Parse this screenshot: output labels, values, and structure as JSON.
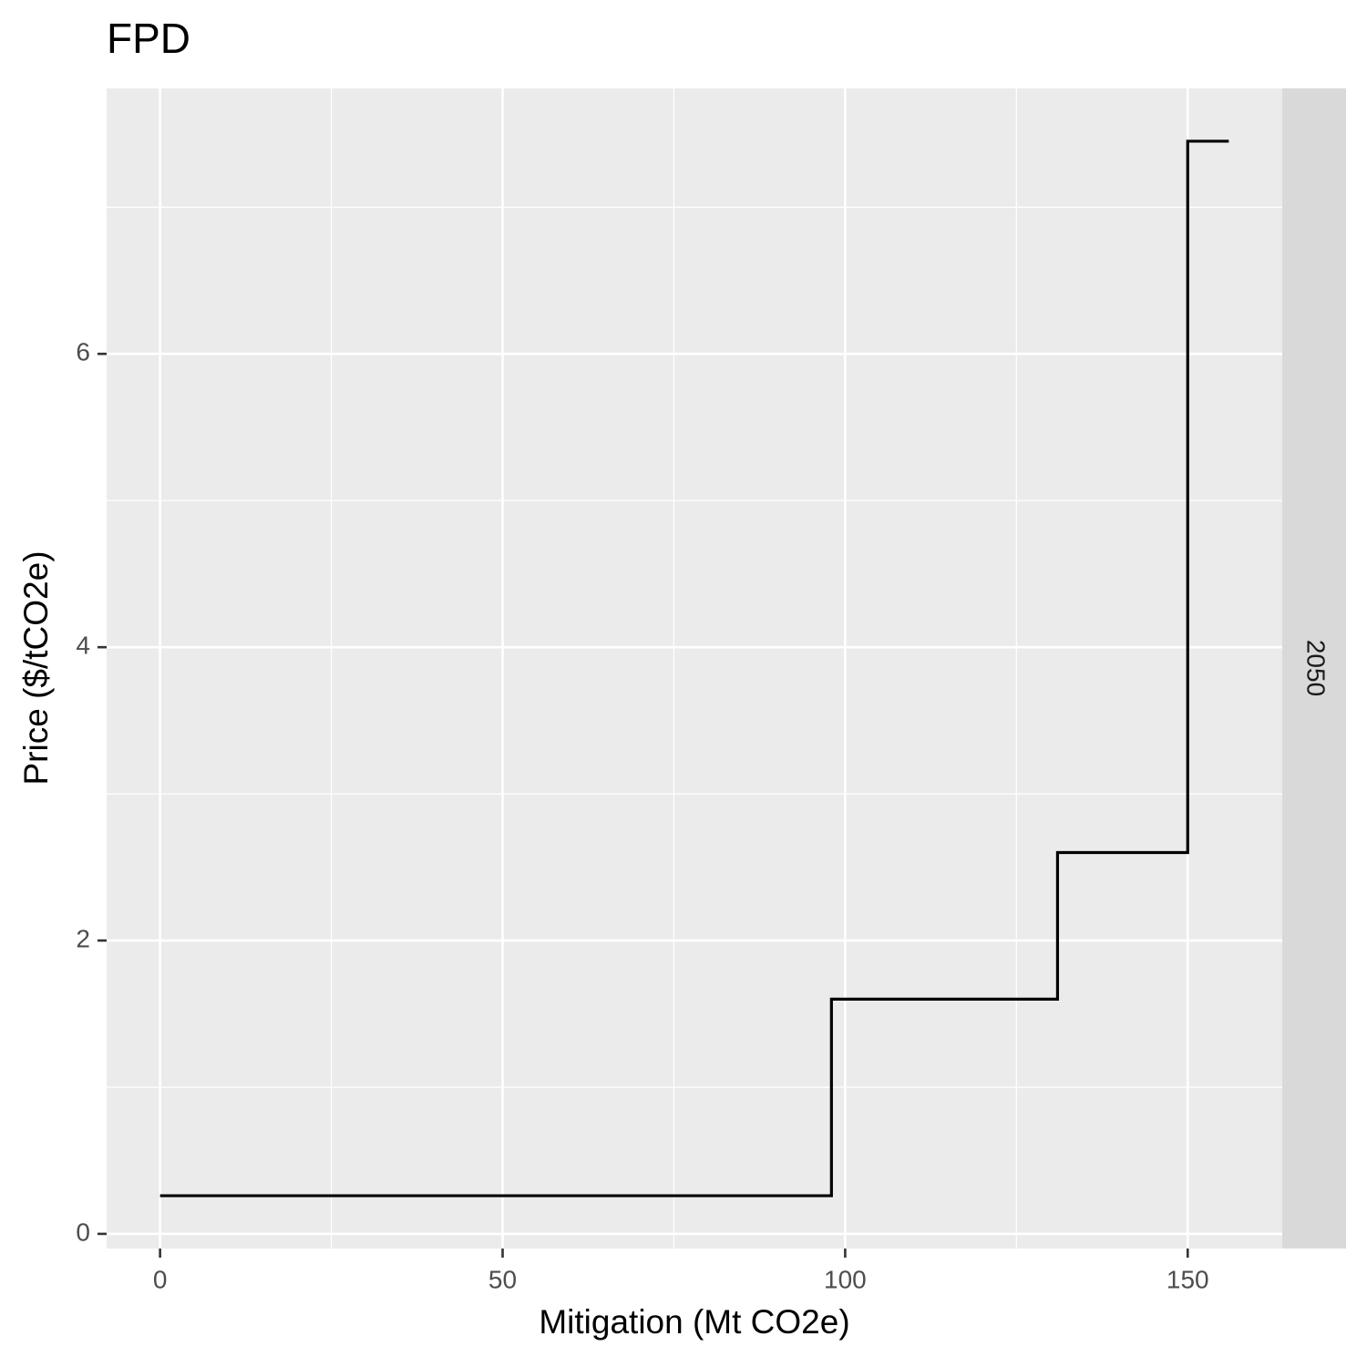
{
  "chart_data": {
    "type": "step",
    "title": "FPD",
    "x_label": "Mitigation (Mt CO2e)",
    "y_label": "Price ($/tCO2e)",
    "facet_label": "2050",
    "x": [
      0,
      98,
      131,
      150,
      156
    ],
    "values": [
      0.26,
      1.6,
      2.6,
      7.45,
      7.45
    ],
    "color": "#000000",
    "xlim": [
      -7.8,
      163.8
    ],
    "xticks": [
      0,
      50,
      100,
      150
    ],
    "x_minor_ticks": [
      25,
      75,
      125
    ],
    "ylim": [
      -0.1,
      7.81
    ],
    "yticks": [
      0,
      2,
      4,
      6
    ],
    "y_minor_ticks": [
      1,
      3,
      5,
      7
    ],
    "grid": true
  }
}
